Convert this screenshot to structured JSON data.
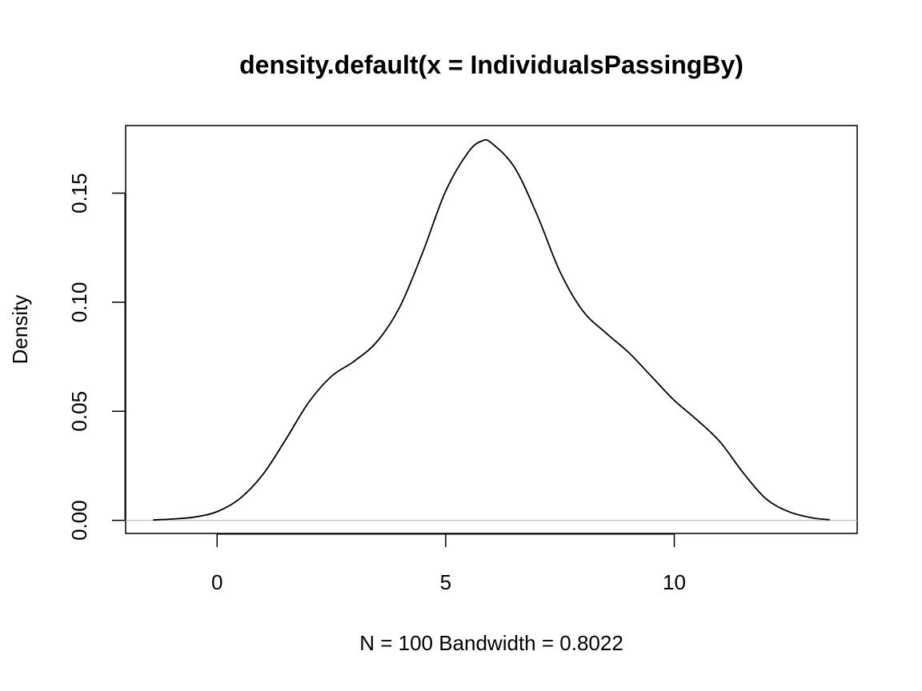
{
  "chart_data": {
    "type": "line",
    "title": "density.default(x = IndividualsPassingBy)",
    "xlabel": "N = 100   Bandwidth = 0.8022",
    "ylabel": "Density",
    "xlim": [
      -2,
      14
    ],
    "ylim": [
      -0.006,
      0.181
    ],
    "x_ticks": [
      0,
      5,
      10
    ],
    "x_tick_labels": [
      "0",
      "5",
      "10"
    ],
    "y_ticks": [
      0.0,
      0.05,
      0.1,
      0.15
    ],
    "y_tick_labels": [
      "0.00",
      "0.05",
      "0.10",
      "0.15"
    ],
    "grid": false,
    "legend": "none",
    "baseline": 0,
    "series": [
      {
        "x": [
          -1.4,
          -1.0,
          -0.5,
          0.0,
          0.5,
          1.0,
          1.5,
          2.0,
          2.5,
          3.0,
          3.5,
          4.0,
          4.5,
          5.0,
          5.5,
          5.8,
          6.0,
          6.5,
          7.0,
          7.5,
          8.0,
          8.5,
          9.0,
          9.5,
          10.0,
          10.5,
          11.0,
          11.5,
          12.0,
          12.5,
          13.0,
          13.4
        ],
        "y": [
          0.0002,
          0.0006,
          0.0015,
          0.004,
          0.01,
          0.021,
          0.037,
          0.054,
          0.066,
          0.073,
          0.082,
          0.098,
          0.123,
          0.151,
          0.169,
          0.174,
          0.173,
          0.162,
          0.14,
          0.114,
          0.096,
          0.086,
          0.077,
          0.066,
          0.055,
          0.046,
          0.036,
          0.022,
          0.01,
          0.004,
          0.0012,
          0.0003
        ]
      }
    ],
    "colors": {
      "line": "#000000",
      "baseline": "#bebebe",
      "frame": "#000000"
    }
  }
}
